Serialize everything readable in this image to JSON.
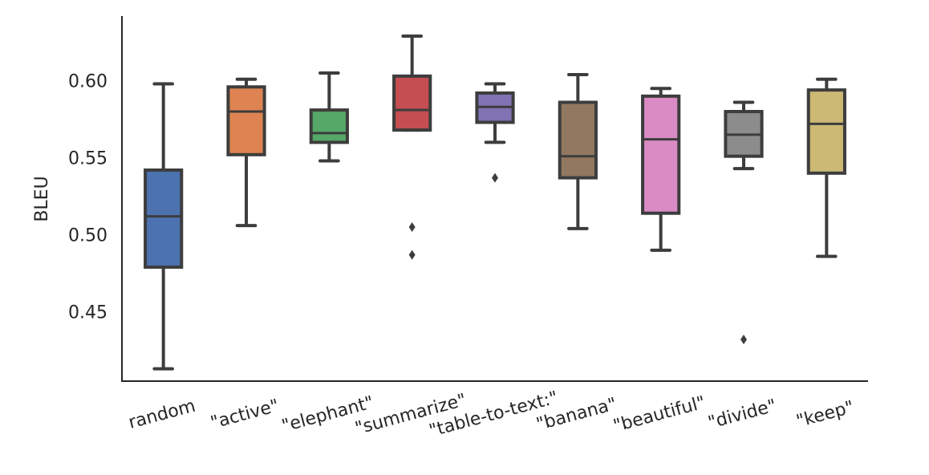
{
  "chart_data": {
    "type": "box",
    "ylabel": "BLEU",
    "xlabel": "",
    "ylim": [
      0.405,
      0.642
    ],
    "yticks": [
      0.45,
      0.5,
      0.55,
      0.6
    ],
    "ytick_labels": [
      "0.45",
      "0.50",
      "0.55",
      "0.60"
    ],
    "grid": false,
    "categories": [
      "random",
      "\"active\"",
      "\"elephant\"",
      "\"summarize\"",
      "\"table-to-text:\"",
      "\"banana\"",
      "\"beautiful\"",
      "\"divide\"",
      "\"keep\""
    ],
    "boxes": [
      {
        "category": "random",
        "color": "#4c72b0",
        "whisker_low": 0.413,
        "q1": 0.479,
        "median": 0.512,
        "q3": 0.542,
        "whisker_high": 0.598,
        "outliers": []
      },
      {
        "category": "\"active\"",
        "color": "#dd8452",
        "whisker_low": 0.506,
        "q1": 0.552,
        "median": 0.58,
        "q3": 0.596,
        "whisker_high": 0.601,
        "outliers": []
      },
      {
        "category": "\"elephant\"",
        "color": "#55a868",
        "whisker_low": 0.548,
        "q1": 0.56,
        "median": 0.566,
        "q3": 0.581,
        "whisker_high": 0.605,
        "outliers": []
      },
      {
        "category": "\"summarize\"",
        "color": "#c44e52",
        "whisker_low": 0.568,
        "q1": 0.568,
        "median": 0.581,
        "q3": 0.603,
        "whisker_high": 0.629,
        "outliers": [
          0.505,
          0.487
        ]
      },
      {
        "category": "\"table-to-text:\"",
        "color": "#8172b3",
        "whisker_low": 0.56,
        "q1": 0.573,
        "median": 0.583,
        "q3": 0.592,
        "whisker_high": 0.598,
        "outliers": [
          0.537
        ]
      },
      {
        "category": "\"banana\"",
        "color": "#937860",
        "whisker_low": 0.504,
        "q1": 0.537,
        "median": 0.551,
        "q3": 0.586,
        "whisker_high": 0.604,
        "outliers": []
      },
      {
        "category": "\"beautiful\"",
        "color": "#da8bc3",
        "whisker_low": 0.49,
        "q1": 0.514,
        "median": 0.562,
        "q3": 0.59,
        "whisker_high": 0.595,
        "outliers": []
      },
      {
        "category": "\"divide\"",
        "color": "#8c8c8c",
        "whisker_low": 0.543,
        "q1": 0.551,
        "median": 0.565,
        "q3": 0.58,
        "whisker_high": 0.586,
        "outliers": [
          0.432
        ]
      },
      {
        "category": "\"keep\"",
        "color": "#ccb974",
        "whisker_low": 0.486,
        "q1": 0.54,
        "median": 0.572,
        "q3": 0.594,
        "whisker_high": 0.601,
        "outliers": []
      }
    ],
    "style": {
      "line_color": "#3d3d3d",
      "axis_color": "#262626"
    }
  }
}
